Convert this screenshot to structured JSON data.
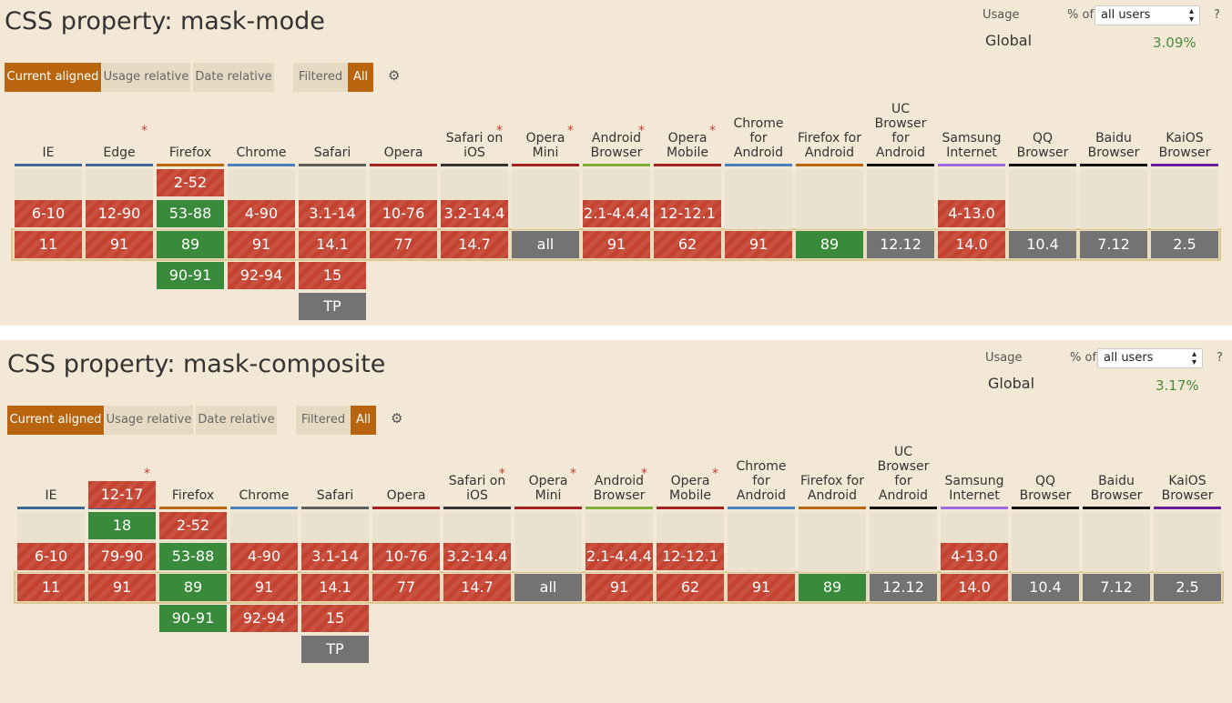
{
  "usage_selector": {
    "usage_label": "Usage",
    "pct_of_label": "% of",
    "select_value": "all users",
    "help_label": "?",
    "global_label": "Global"
  },
  "tabs": {
    "current_aligned": "Current aligned",
    "usage_relative": "Usage relative",
    "date_relative": "Date relative",
    "filtered": "Filtered",
    "all": "All"
  },
  "icons": {
    "settings": "gear-icon",
    "select_arrows": "up-down-arrows-icon",
    "star": "asterisk-note-icon"
  },
  "colors": {
    "unsupported": "#c44230",
    "supported": "#398a3a",
    "unknown": "#737373",
    "active_tab": "#b9650f",
    "background": "#f2e8d5"
  },
  "browsers": [
    {
      "name": "IE",
      "star": false,
      "bar_color": "#3e6796"
    },
    {
      "name": "Edge",
      "star": true,
      "bar_color": "#3e6796"
    },
    {
      "name": "Firefox",
      "star": false,
      "bar_color": "#b9650f"
    },
    {
      "name": "Chrome",
      "star": false,
      "bar_color": "#4d7fbd"
    },
    {
      "name": "Safari",
      "star": false,
      "bar_color": "#5f5f5f"
    },
    {
      "name": "Opera",
      "star": false,
      "bar_color": "#a32020"
    },
    {
      "name": "Safari on iOS",
      "star": true,
      "bar_color": "#333333"
    },
    {
      "name": "Opera Mini",
      "star": true,
      "bar_color": "#a32020"
    },
    {
      "name": "Android Browser",
      "star": true,
      "bar_color": "#7fad3a"
    },
    {
      "name": "Opera Mobile",
      "star": true,
      "bar_color": "#a32020"
    },
    {
      "name": "Chrome for Android",
      "star": false,
      "bar_color": "#4d7fbd"
    },
    {
      "name": "Firefox for Android",
      "star": false,
      "bar_color": "#b9650f"
    },
    {
      "name": "UC Browser for Android",
      "star": false,
      "bar_color": "#111111"
    },
    {
      "name": "Samsung Internet",
      "star": false,
      "bar_color": "#9f69e0"
    },
    {
      "name": "QQ Browser",
      "star": false,
      "bar_color": "#111111"
    },
    {
      "name": "Baidu Browser",
      "star": false,
      "bar_color": "#111111"
    },
    {
      "name": "KaiOS Browser",
      "star": false,
      "bar_color": "#6a1b9a"
    }
  ],
  "features": [
    {
      "title": "CSS property: mask-mode",
      "global_pct": "3.09%",
      "columns": [
        [
          [
            "6-10",
            "n",
            -1
          ],
          [
            "11",
            "n",
            0
          ]
        ],
        [
          [
            "12-90",
            "n",
            -1
          ],
          [
            "91",
            "n",
            0
          ]
        ],
        [
          [
            "2-52",
            "n",
            -2
          ],
          [
            "53-88",
            "y",
            -1
          ],
          [
            "89",
            "y",
            0
          ],
          [
            "90-91",
            "y",
            1
          ]
        ],
        [
          [
            "4-90",
            "n",
            -1
          ],
          [
            "91",
            "n",
            0
          ],
          [
            "92-94",
            "n",
            1
          ]
        ],
        [
          [
            "3.1-14",
            "n",
            -1
          ],
          [
            "14.1",
            "n",
            0
          ],
          [
            "15",
            "n",
            1
          ],
          [
            "TP",
            "u",
            2
          ]
        ],
        [
          [
            "10-76",
            "n",
            -1
          ],
          [
            "77",
            "n",
            0
          ]
        ],
        [
          [
            "3.2-14.4",
            "n",
            -1
          ],
          [
            "14.7",
            "n",
            0
          ]
        ],
        [
          [
            "all",
            "u",
            0
          ]
        ],
        [
          [
            "2.1-4.4.4",
            "n",
            -1
          ],
          [
            "91",
            "n",
            0
          ]
        ],
        [
          [
            "12-12.1",
            "n",
            -1
          ],
          [
            "62",
            "n",
            0
          ]
        ],
        [
          [
            "91",
            "n",
            0
          ]
        ],
        [
          [
            "89",
            "y",
            0
          ]
        ],
        [
          [
            "12.12",
            "u",
            0
          ]
        ],
        [
          [
            "4-13.0",
            "n",
            -1
          ],
          [
            "14.0",
            "n",
            0
          ]
        ],
        [
          [
            "10.4",
            "u",
            0
          ]
        ],
        [
          [
            "7.12",
            "u",
            0
          ]
        ],
        [
          [
            "2.5",
            "u",
            0
          ]
        ]
      ]
    },
    {
      "title": "CSS property: mask-composite",
      "global_pct": "3.17%",
      "columns": [
        [
          [
            "6-10",
            "n",
            -1
          ],
          [
            "11",
            "n",
            0
          ]
        ],
        [
          [
            "12-17",
            "n",
            -3
          ],
          [
            "18",
            "y",
            -2
          ],
          [
            "79-90",
            "n",
            -1
          ],
          [
            "91",
            "n",
            0
          ]
        ],
        [
          [
            "2-52",
            "n",
            -2
          ],
          [
            "53-88",
            "y",
            -1
          ],
          [
            "89",
            "y",
            0
          ],
          [
            "90-91",
            "y",
            1
          ]
        ],
        [
          [
            "4-90",
            "n",
            -1
          ],
          [
            "91",
            "n",
            0
          ],
          [
            "92-94",
            "n",
            1
          ]
        ],
        [
          [
            "3.1-14",
            "n",
            -1
          ],
          [
            "14.1",
            "n",
            0
          ],
          [
            "15",
            "n",
            1
          ],
          [
            "TP",
            "u",
            2
          ]
        ],
        [
          [
            "10-76",
            "n",
            -1
          ],
          [
            "77",
            "n",
            0
          ]
        ],
        [
          [
            "3.2-14.4",
            "n",
            -1
          ],
          [
            "14.7",
            "n",
            0
          ]
        ],
        [
          [
            "all",
            "u",
            0
          ]
        ],
        [
          [
            "2.1-4.4.4",
            "n",
            -1
          ],
          [
            "91",
            "n",
            0
          ]
        ],
        [
          [
            "12-12.1",
            "n",
            -1
          ],
          [
            "62",
            "n",
            0
          ]
        ],
        [
          [
            "91",
            "n",
            0
          ]
        ],
        [
          [
            "89",
            "y",
            0
          ]
        ],
        [
          [
            "12.12",
            "u",
            0
          ]
        ],
        [
          [
            "4-13.0",
            "n",
            -1
          ],
          [
            "14.0",
            "n",
            0
          ]
        ],
        [
          [
            "10.4",
            "u",
            0
          ]
        ],
        [
          [
            "7.12",
            "u",
            0
          ]
        ],
        [
          [
            "2.5",
            "u",
            0
          ]
        ]
      ]
    }
  ]
}
